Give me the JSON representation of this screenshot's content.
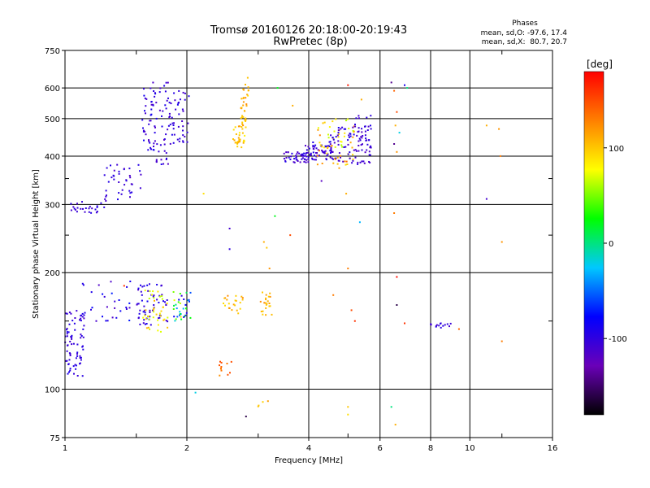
{
  "chart_data": {
    "type": "scatter",
    "title": "Tromsø 20160126 20:18:00-20:19:43",
    "subtitle": "RwPretec (8p)",
    "xlabel": "Frequency [MHz]",
    "ylabel": "Stationary phase Virtual Height [km]",
    "x_scale": "log",
    "y_scale": "log",
    "xlim": [
      1,
      16
    ],
    "ylim": [
      75,
      750
    ],
    "grid": true,
    "x_ticks": [
      1,
      2,
      4,
      6,
      8,
      10,
      16
    ],
    "y_ticks": [
      75,
      100,
      200,
      300,
      400,
      500,
      600,
      750
    ],
    "x_minor_ticks": [
      1.5,
      3,
      5,
      12
    ],
    "y_minor_ticks": [
      150,
      250,
      350
    ],
    "phase_info": {
      "heading": "Phases",
      "line1": "mean, sd,O: -97.6, 17.4",
      "line2": "mean, sd,X:  80.7, 20.7"
    },
    "colorbar": {
      "label": "[deg]",
      "ticks": [
        100,
        0,
        -100
      ],
      "range": [
        -180,
        180
      ],
      "stops": [
        "#000000",
        "#6a00b8",
        "#0000ff",
        "#00c8ff",
        "#00ff00",
        "#ffff00",
        "#ff8000",
        "#ff0000"
      ]
    },
    "clusters": [
      {
        "x": [
          1.0,
          1.12
        ],
        "y": [
          108,
          160
        ],
        "phase": [
          -110,
          -90
        ],
        "count": 75
      },
      {
        "x": [
          1.1,
          1.45
        ],
        "y": [
          150,
          190
        ],
        "phase": [
          -120,
          -70
        ],
        "count": 30
      },
      {
        "x": [
          1.02,
          1.25
        ],
        "y": [
          285,
          305
        ],
        "phase": [
          -115,
          -95
        ],
        "count": 25
      },
      {
        "x": [
          1.25,
          1.55
        ],
        "y": [
          305,
          380
        ],
        "phase": [
          -115,
          -90
        ],
        "count": 40
      },
      {
        "x": [
          1.55,
          1.8
        ],
        "y": [
          380,
          620
        ],
        "phase": [
          -118,
          -85
        ],
        "count": 80
      },
      {
        "x": [
          1.8,
          2.05
        ],
        "y": [
          430,
          590
        ],
        "phase": [
          -115,
          -90
        ],
        "count": 45
      },
      {
        "x": [
          1.5,
          1.8
        ],
        "y": [
          145,
          190
        ],
        "phase": [
          -115,
          -85
        ],
        "count": 60
      },
      {
        "x": [
          1.55,
          1.8
        ],
        "y": [
          140,
          180
        ],
        "phase": [
          60,
          110
        ],
        "count": 40
      },
      {
        "x": [
          1.85,
          2.05
        ],
        "y": [
          150,
          180
        ],
        "phase": [
          -100,
          100
        ],
        "count": 35
      },
      {
        "x": [
          2.6,
          2.8
        ],
        "y": [
          420,
          480
        ],
        "phase": [
          80,
          120
        ],
        "count": 30
      },
      {
        "x": [
          2.72,
          2.85
        ],
        "y": [
          470,
          640
        ],
        "phase": [
          90,
          125
        ],
        "count": 35
      },
      {
        "x": [
          2.45,
          2.75
        ],
        "y": [
          155,
          175
        ],
        "phase": [
          90,
          130
        ],
        "count": 22
      },
      {
        "x": [
          3.0,
          3.25
        ],
        "y": [
          155,
          180
        ],
        "phase": [
          90,
          125
        ],
        "count": 22
      },
      {
        "x": [
          2.4,
          2.65
        ],
        "y": [
          108,
          118
        ],
        "phase": [
          120,
          150
        ],
        "count": 12
      },
      {
        "x": [
          3.0,
          3.25
        ],
        "y": [
          90,
          95
        ],
        "phase": [
          90,
          120
        ],
        "count": 4
      },
      {
        "x": [
          3.4,
          4.0
        ],
        "y": [
          385,
          410
        ],
        "phase": [
          -118,
          -90
        ],
        "count": 45
      },
      {
        "x": [
          3.9,
          4.6
        ],
        "y": [
          390,
          440
        ],
        "phase": [
          -120,
          -90
        ],
        "count": 60
      },
      {
        "x": [
          4.2,
          5.2
        ],
        "y": [
          370,
          500
        ],
        "phase": [
          60,
          140
        ],
        "count": 60
      },
      {
        "x": [
          4.5,
          5.7
        ],
        "y": [
          380,
          480
        ],
        "phase": [
          -120,
          -90
        ],
        "count": 70
      },
      {
        "x": [
          5.2,
          5.7
        ],
        "y": [
          400,
          510
        ],
        "phase": [
          -118,
          -95
        ],
        "count": 30
      },
      {
        "x": [
          8.0,
          9.0
        ],
        "y": [
          144,
          148
        ],
        "phase": [
          -115,
          -95
        ],
        "count": 15
      }
    ],
    "sparse_points": [
      {
        "x": 1.4,
        "y": 185,
        "phase": 160
      },
      {
        "x": 2.55,
        "y": 260,
        "phase": -110
      },
      {
        "x": 2.55,
        "y": 230,
        "phase": -100
      },
      {
        "x": 3.1,
        "y": 240,
        "phase": 110
      },
      {
        "x": 3.15,
        "y": 232,
        "phase": 100
      },
      {
        "x": 3.2,
        "y": 205,
        "phase": 120
      },
      {
        "x": 3.3,
        "y": 280,
        "phase": 20
      },
      {
        "x": 3.35,
        "y": 600,
        "phase": 20
      },
      {
        "x": 3.6,
        "y": 250,
        "phase": 150
      },
      {
        "x": 3.65,
        "y": 540,
        "phase": 110
      },
      {
        "x": 2.1,
        "y": 98,
        "phase": -20
      },
      {
        "x": 2.2,
        "y": 320,
        "phase": 90
      },
      {
        "x": 2.8,
        "y": 85,
        "phase": -160
      },
      {
        "x": 4.3,
        "y": 345,
        "phase": -120
      },
      {
        "x": 4.6,
        "y": 175,
        "phase": 130
      },
      {
        "x": 4.95,
        "y": 320,
        "phase": 110
      },
      {
        "x": 5.0,
        "y": 205,
        "phase": 130
      },
      {
        "x": 5.1,
        "y": 160,
        "phase": 150
      },
      {
        "x": 5.2,
        "y": 150,
        "phase": 160
      },
      {
        "x": 5.0,
        "y": 90,
        "phase": 100
      },
      {
        "x": 5.0,
        "y": 86,
        "phase": 90
      },
      {
        "x": 5.0,
        "y": 610,
        "phase": 170
      },
      {
        "x": 5.4,
        "y": 560,
        "phase": 110
      },
      {
        "x": 5.35,
        "y": 270,
        "phase": -30
      },
      {
        "x": 6.4,
        "y": 620,
        "phase": -140
      },
      {
        "x": 6.5,
        "y": 590,
        "phase": 140
      },
      {
        "x": 6.6,
        "y": 520,
        "phase": 150
      },
      {
        "x": 6.55,
        "y": 480,
        "phase": 110
      },
      {
        "x": 6.7,
        "y": 460,
        "phase": -20
      },
      {
        "x": 6.5,
        "y": 430,
        "phase": -140
      },
      {
        "x": 6.6,
        "y": 410,
        "phase": 120
      },
      {
        "x": 6.9,
        "y": 610,
        "phase": -90
      },
      {
        "x": 7.0,
        "y": 600,
        "phase": 0
      },
      {
        "x": 6.5,
        "y": 285,
        "phase": 130
      },
      {
        "x": 6.6,
        "y": 195,
        "phase": 175
      },
      {
        "x": 6.6,
        "y": 165,
        "phase": -160
      },
      {
        "x": 6.9,
        "y": 148,
        "phase": 160
      },
      {
        "x": 6.4,
        "y": 90,
        "phase": 0
      },
      {
        "x": 6.55,
        "y": 81,
        "phase": 110
      },
      {
        "x": 11.0,
        "y": 310,
        "phase": -110
      },
      {
        "x": 11.0,
        "y": 480,
        "phase": 110
      },
      {
        "x": 11.8,
        "y": 470,
        "phase": 120
      },
      {
        "x": 11.9,
        "y": 400,
        "phase": 130
      },
      {
        "x": 12.0,
        "y": 240,
        "phase": 120
      },
      {
        "x": 12.0,
        "y": 133,
        "phase": 130
      },
      {
        "x": 9.4,
        "y": 143,
        "phase": 140
      }
    ]
  }
}
